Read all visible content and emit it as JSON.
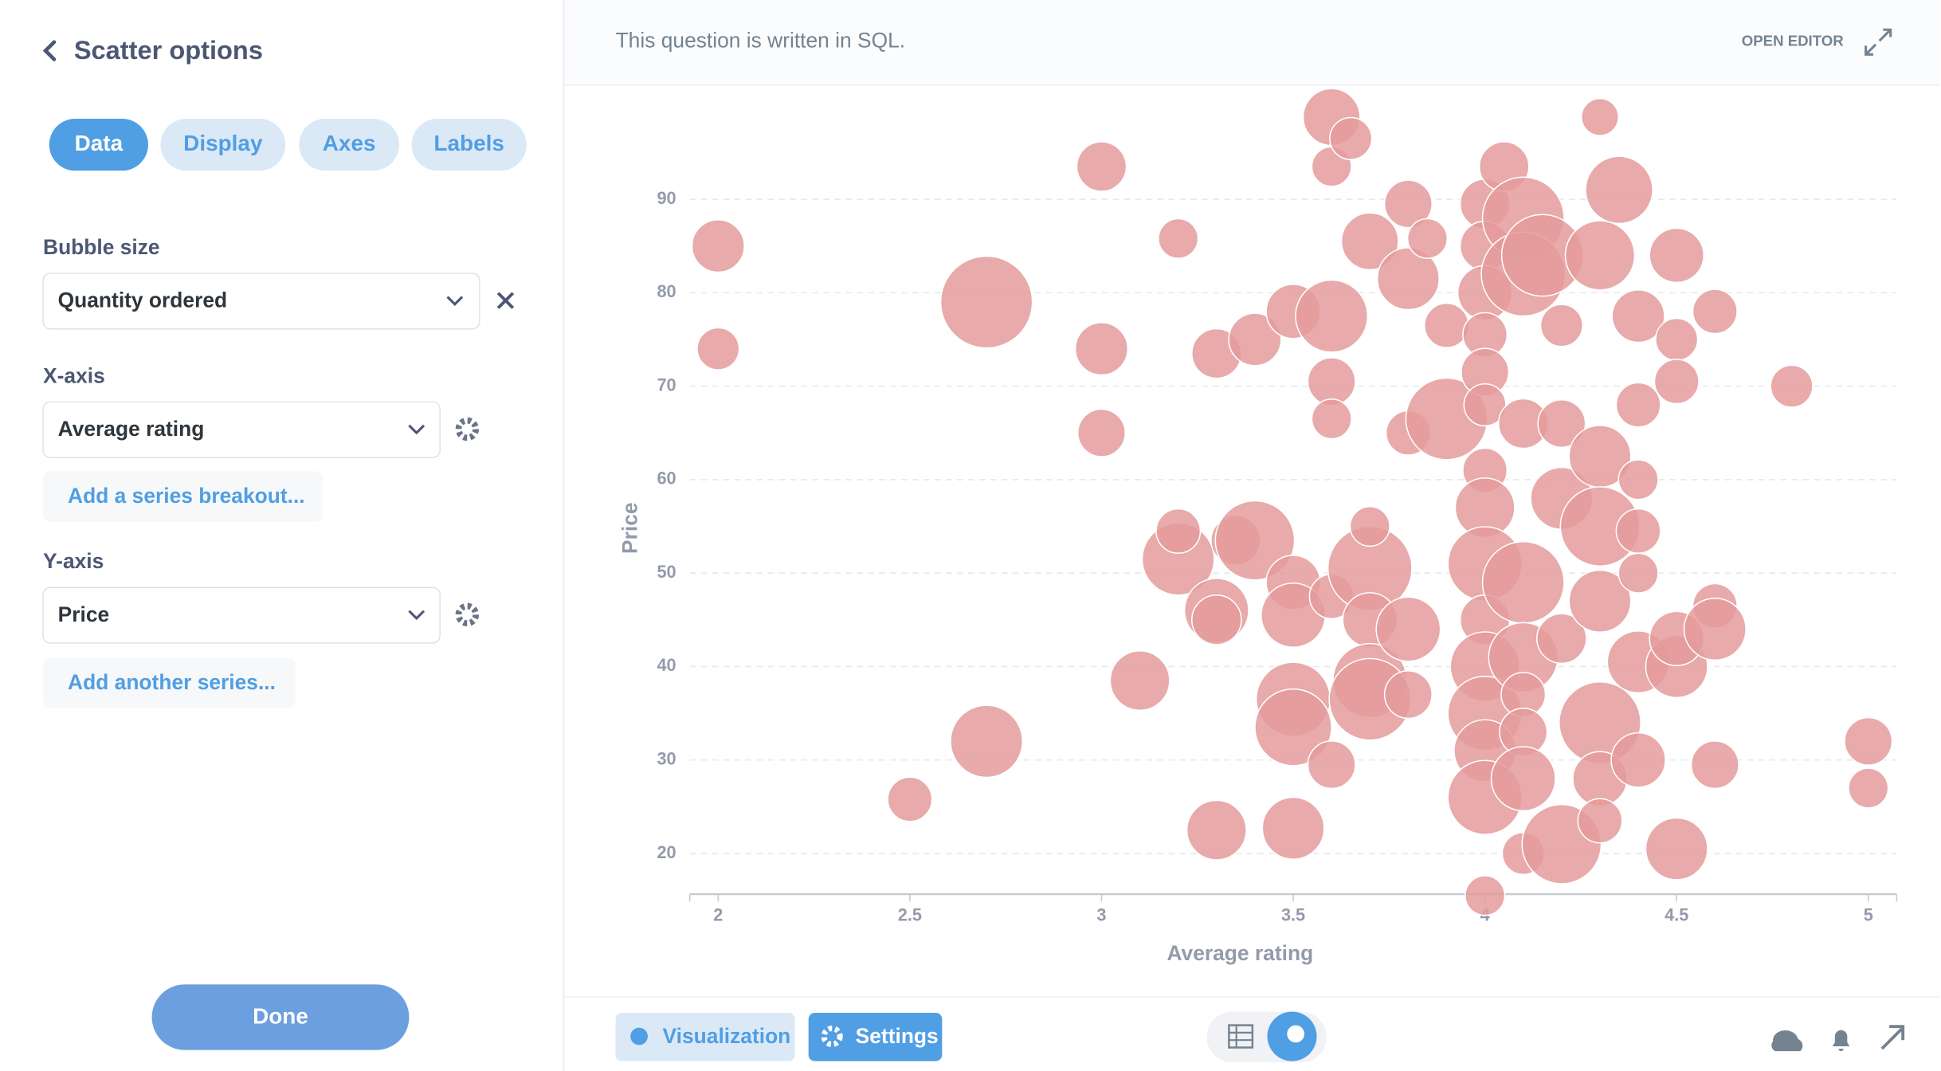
{
  "sidebar": {
    "title": "Scatter options",
    "tabs": [
      "Data",
      "Display",
      "Axes",
      "Labels"
    ],
    "bubble_size_label": "Bubble size",
    "bubble_size_value": "Quantity ordered",
    "x_axis_label": "X-axis",
    "x_axis_value": "Average rating",
    "add_breakout": "Add a series breakout...",
    "y_axis_label": "Y-axis",
    "y_axis_value": "Price",
    "add_series": "Add another series...",
    "done": "Done"
  },
  "header": {
    "note": "This question is written in SQL.",
    "open_editor": "OPEN EDITOR"
  },
  "footer": {
    "visualization": "Visualization",
    "settings": "Settings"
  },
  "chart_data": {
    "type": "scatter",
    "xlabel": "Average rating",
    "ylabel": "Price",
    "color": "#e49b9b",
    "grid": true,
    "xlim": [
      1.926,
      5.074
    ],
    "ylim": [
      15.65,
      101
    ],
    "xticks": [
      2,
      2.5,
      3,
      3.5,
      4,
      4.5,
      5
    ],
    "yticks": [
      20,
      30,
      40,
      50,
      60,
      70,
      80,
      90
    ],
    "x": [
      2,
      2,
      2.5,
      2.7,
      2.7,
      3,
      3,
      3,
      3.1,
      3.2,
      3.2,
      3.2,
      3.3,
      3.3,
      3.3,
      3.3,
      3.35,
      3.4,
      3.4,
      3.5,
      3.5,
      3.5,
      3.5,
      3.5,
      3.5,
      3.6,
      3.6,
      3.6,
      3.6,
      3.6,
      3.6,
      3.6,
      3.65,
      3.7,
      3.7,
      3.7,
      3.7,
      3.7,
      3.7,
      3.8,
      3.8,
      3.8,
      3.8,
      3.8,
      3.85,
      3.9,
      3.9,
      4,
      4,
      4,
      4,
      4,
      4,
      4,
      4,
      4,
      4,
      4,
      4,
      4,
      4,
      4,
      4.05,
      4.1,
      4.1,
      4.1,
      4.1,
      4.1,
      4.1,
      4.1,
      4.1,
      4.1,
      4.15,
      4.2,
      4.2,
      4.2,
      4.2,
      4.2,
      4.3,
      4.3,
      4.3,
      4.3,
      4.3,
      4.3,
      4.3,
      4.3,
      4.35,
      4.4,
      4.4,
      4.4,
      4.4,
      4.4,
      4.4,
      4.4,
      4.5,
      4.5,
      4.5,
      4.5,
      4.5,
      4.5,
      4.6,
      4.6,
      4.6,
      4.6,
      4.8,
      5,
      5
    ],
    "values": [
      85,
      74,
      25.8,
      79,
      32,
      93.5,
      74,
      65,
      38.5,
      85.8,
      51.5,
      54.5,
      73.5,
      46,
      45,
      22.5,
      53.5,
      75,
      53.5,
      78,
      49,
      45.5,
      36.5,
      33.5,
      22.7,
      98.8,
      93.5,
      77.5,
      70.5,
      66.5,
      47.5,
      29.5,
      96.5,
      85.5,
      50.5,
      45,
      38.5,
      36.5,
      55,
      89.5,
      81.5,
      65,
      37,
      44,
      85.8,
      76.5,
      66.5,
      89.5,
      85,
      80,
      75.5,
      71.5,
      68,
      61,
      57,
      51,
      45,
      40,
      35,
      31,
      26,
      15.5,
      93.5,
      88,
      82,
      66,
      49,
      41,
      37,
      33,
      28,
      20,
      84,
      76.5,
      66,
      43,
      21,
      58,
      98.8,
      84,
      62.5,
      55,
      47,
      34,
      28,
      23.5,
      91,
      77.5,
      68,
      60,
      54.5,
      50,
      40.5,
      30,
      84,
      75,
      70.5,
      40,
      43,
      20.5,
      78,
      46.5,
      44,
      29.5,
      70,
      32,
      27
    ],
    "sizes": [
      28,
      18,
      20,
      86,
      53,
      25,
      28,
      23,
      36,
      16,
      53,
      20,
      25,
      42,
      25,
      36,
      25,
      28,
      64,
      30,
      30,
      42,
      56,
      60,
      39,
      33,
      16,
      53,
      23,
      16,
      20,
      23,
      18,
      33,
      72,
      30,
      56,
      68,
      16,
      23,
      39,
      20,
      23,
      42,
      16,
      20,
      68,
      25,
      25,
      30,
      20,
      23,
      18,
      20,
      36,
      56,
      25,
      49,
      56,
      39,
      56,
      16,
      25,
      68,
      72,
      25,
      68,
      49,
      20,
      23,
      42,
      18,
      68,
      18,
      23,
      25,
      64,
      39,
      14,
      49,
      39,
      64,
      39,
      68,
      30,
      20,
      46,
      28,
      20,
      16,
      20,
      16,
      39,
      30,
      30,
      18,
      20,
      39,
      30,
      39,
      20,
      20,
      39,
      23,
      18,
      23,
      16
    ]
  }
}
